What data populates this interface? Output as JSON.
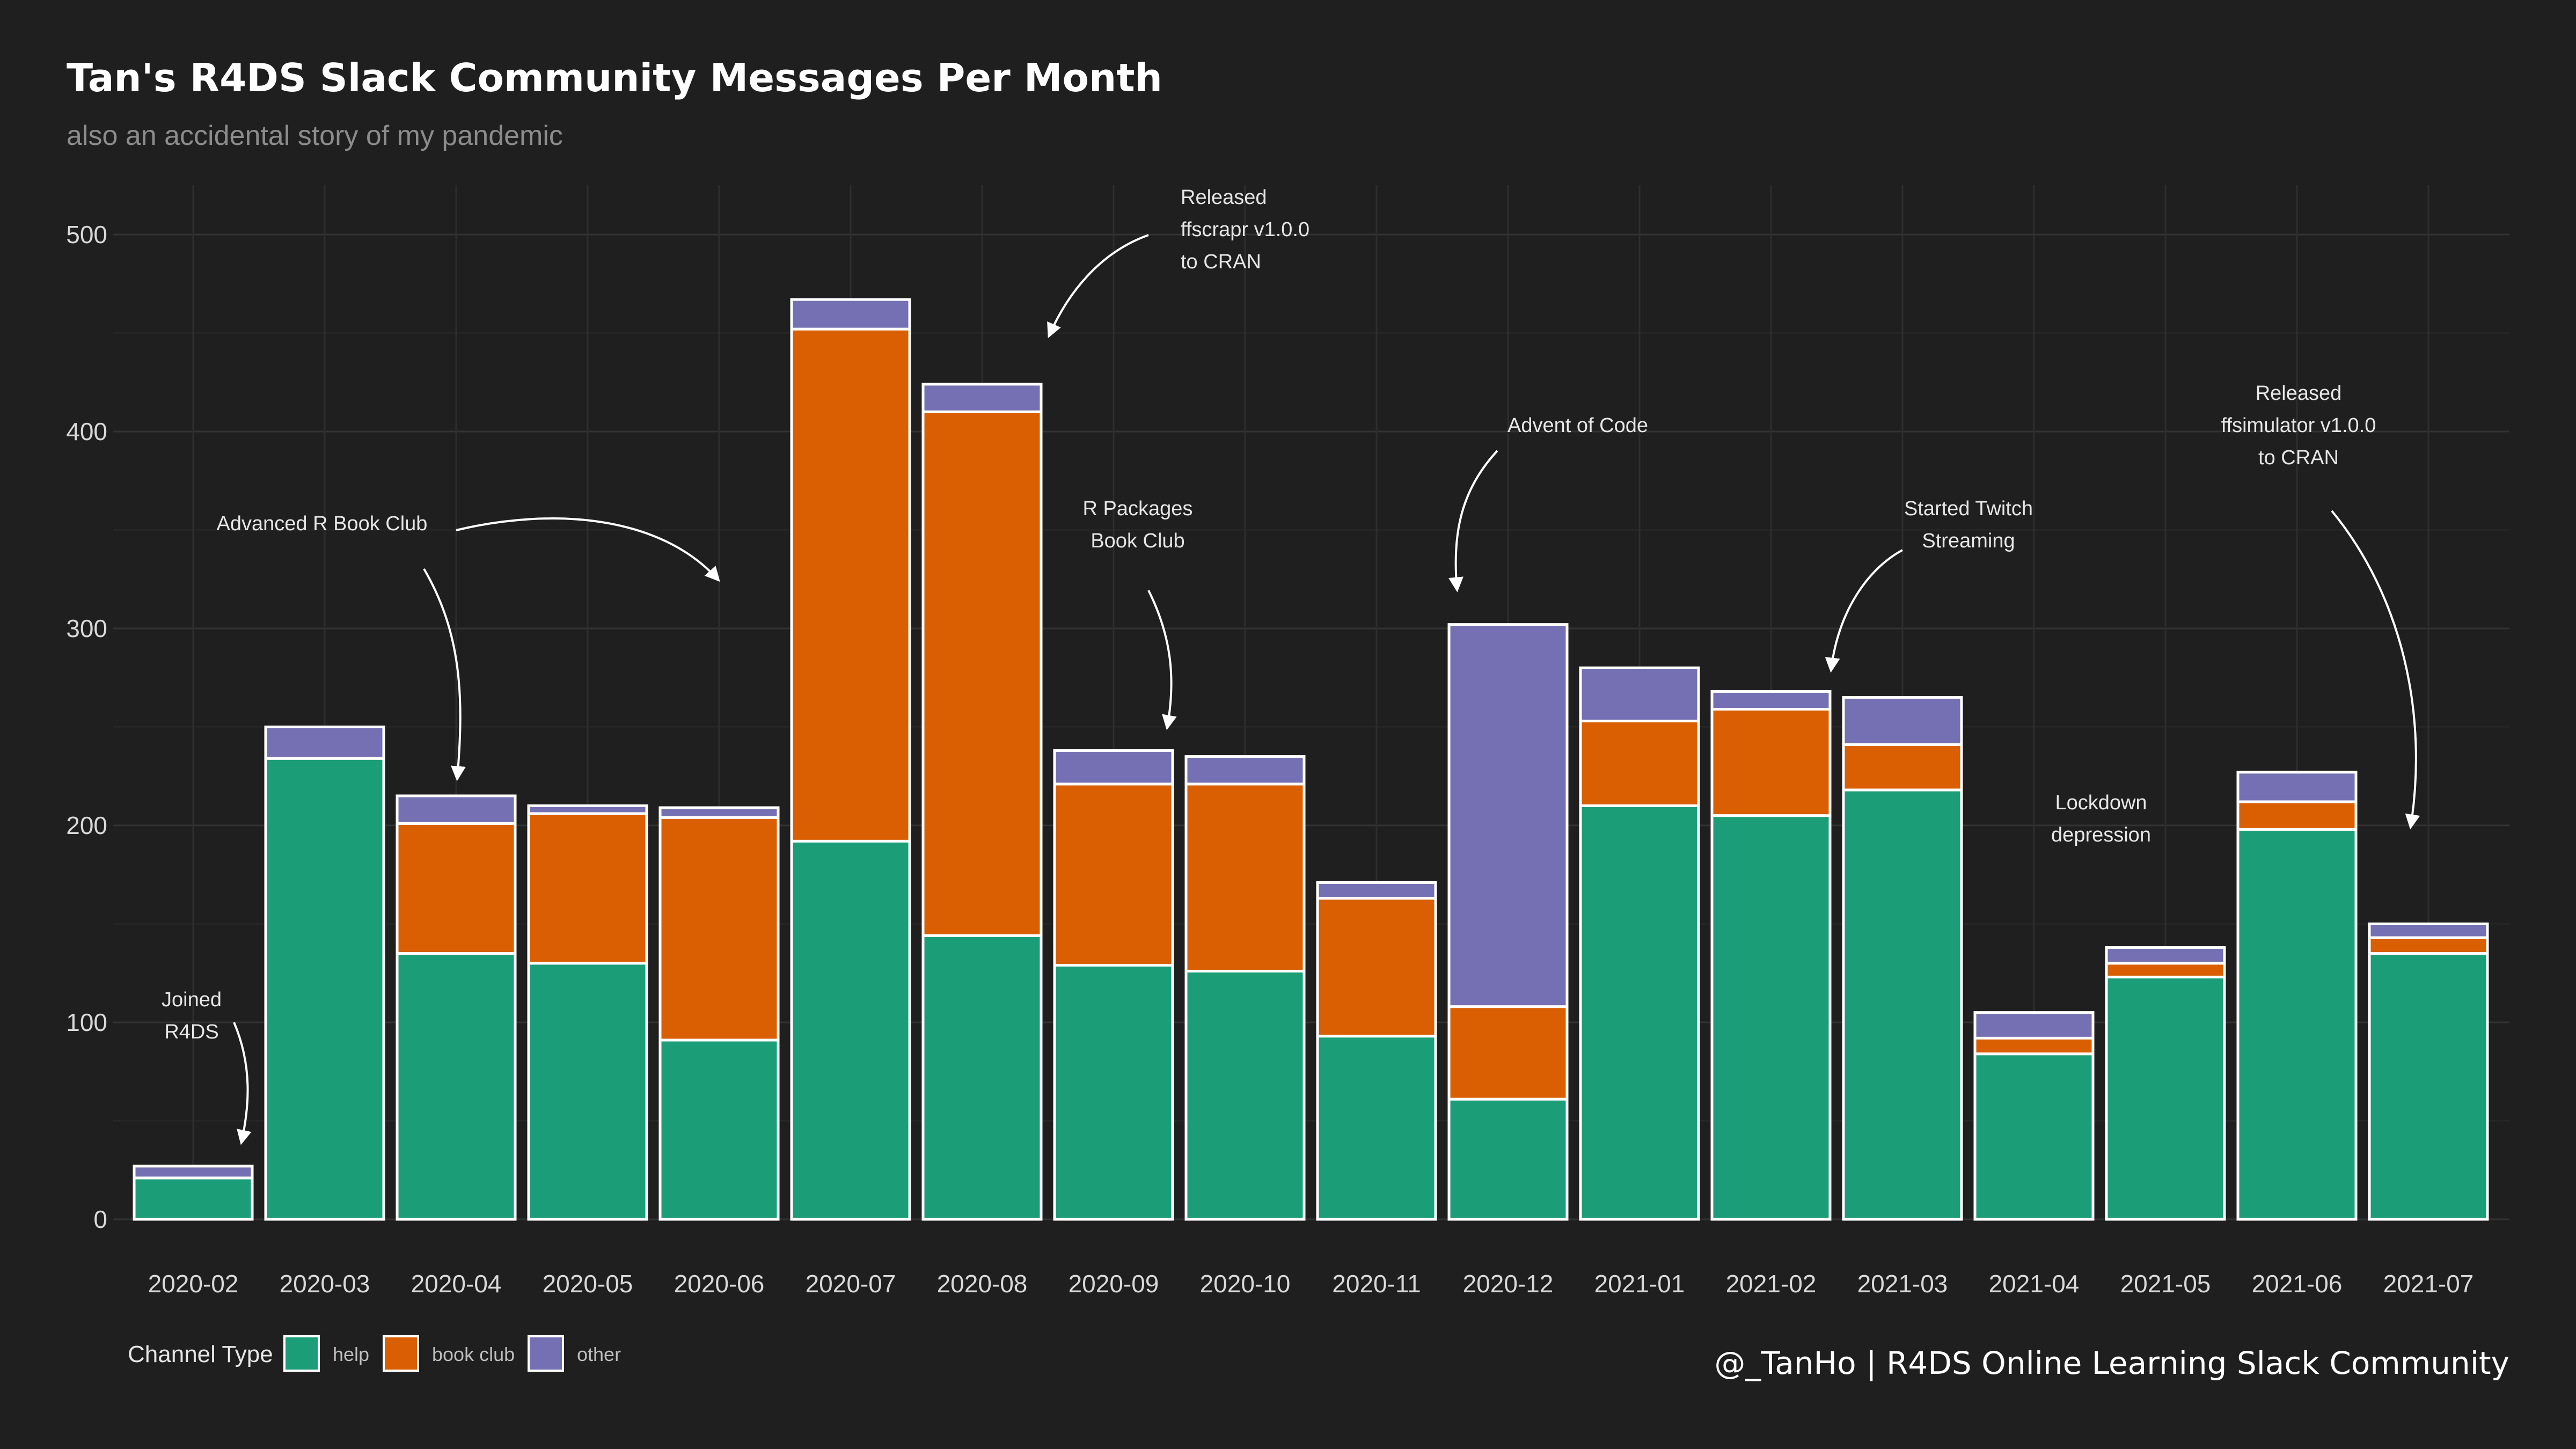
{
  "chart_data": {
    "type": "bar",
    "stacked": true,
    "title": "Tan's R4DS Slack Community Messages Per Month",
    "subtitle": "also an accidental story of my pandemic",
    "caption": "@_TanHo | R4DS Online Learning Slack Community",
    "xlabel": "",
    "ylabel": "",
    "ylim": [
      0,
      520
    ],
    "yticks": [
      0,
      100,
      200,
      300,
      400,
      500
    ],
    "grid": true,
    "legend": {
      "title": "Channel Type",
      "position": "bottom-left"
    },
    "categories": [
      "2020-02",
      "2020-03",
      "2020-04",
      "2020-05",
      "2020-06",
      "2020-07",
      "2020-08",
      "2020-09",
      "2020-10",
      "2020-11",
      "2020-12",
      "2021-01",
      "2021-02",
      "2021-03",
      "2021-04",
      "2021-05",
      "2021-06",
      "2021-07"
    ],
    "series": [
      {
        "name": "help",
        "color": "#1b9e77",
        "values": [
          21,
          234,
          135,
          130,
          91,
          192,
          144,
          129,
          126,
          93,
          61,
          210,
          205,
          218,
          84,
          123,
          198,
          135
        ]
      },
      {
        "name": "book club",
        "color": "#d95f02",
        "values": [
          0,
          0,
          66,
          76,
          113,
          260,
          266,
          92,
          95,
          70,
          47,
          43,
          54,
          23,
          8,
          7,
          14,
          8
        ]
      },
      {
        "name": "other",
        "color": "#7570b3",
        "values": [
          6,
          16,
          14,
          4,
          5,
          15,
          14,
          17,
          14,
          8,
          194,
          27,
          9,
          24,
          13,
          8,
          15,
          7
        ]
      }
    ],
    "annotations": [
      {
        "text": [
          "Joined",
          "R4DS"
        ],
        "points_to": "2020-02"
      },
      {
        "text": [
          "Advanced R Book Club"
        ],
        "points_to": "2020-04, 2020-06"
      },
      {
        "text": [
          "Released",
          "ffscrapr v1.0.0",
          "to CRAN"
        ],
        "points_to": "2020-08"
      },
      {
        "text": [
          "R Packages",
          "Book Club"
        ],
        "points_to": "2020-09"
      },
      {
        "text": [
          "Advent of Code"
        ],
        "points_to": "2020-12"
      },
      {
        "text": [
          "Started Twitch",
          "Streaming"
        ],
        "points_to": "2021-02"
      },
      {
        "text": [
          "Lockdown",
          "depression"
        ],
        "points_to": "2021-04"
      },
      {
        "text": [
          "Released",
          "ffsimulator v1.0.0",
          "to CRAN"
        ],
        "points_to": "2021-07"
      }
    ]
  }
}
